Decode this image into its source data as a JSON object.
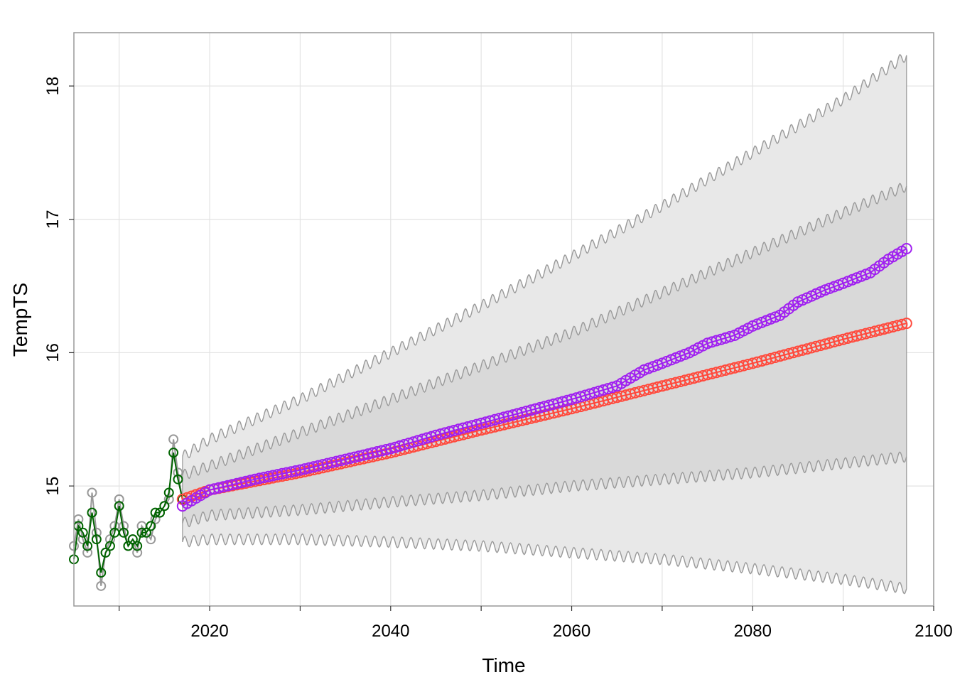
{
  "chart_data": {
    "type": "line",
    "title": "",
    "xlabel": "Time",
    "ylabel": "TempTS",
    "xlim": [
      2005,
      2100
    ],
    "ylim": [
      14.1,
      18.4
    ],
    "x_ticks": [
      2020,
      2040,
      2060,
      2080,
      2100
    ],
    "x_minor_ticks": [
      2010,
      2030,
      2050,
      2070,
      2090
    ],
    "y_ticks": [
      15,
      16,
      17,
      18
    ],
    "grid": true,
    "legend": "none",
    "colors": {
      "observed_line": "#999999",
      "fitted": "#006400",
      "forecast_a": "#FF4A3D",
      "forecast_b": "#A020F0",
      "interval_outer": "#E8E8E8",
      "interval_inner": "#D9D9D9",
      "interval_edge": "#999999"
    },
    "observed": {
      "x": [
        2005.0,
        2005.5,
        2006.0,
        2006.5,
        2007.0,
        2007.5,
        2008.0,
        2008.5,
        2009.0,
        2009.5,
        2010.0,
        2010.5,
        2011.0,
        2011.5,
        2012.0,
        2012.5,
        2013.0,
        2013.5,
        2014.0,
        2014.5,
        2015.0,
        2015.5,
        2016.0,
        2016.5,
        2017.0
      ],
      "y": [
        14.55,
        14.75,
        14.6,
        14.5,
        14.95,
        14.65,
        14.25,
        14.5,
        14.6,
        14.7,
        14.9,
        14.7,
        14.55,
        14.6,
        14.5,
        14.7,
        14.65,
        14.6,
        14.75,
        14.8,
        14.85,
        14.9,
        15.35,
        15.1,
        14.9
      ]
    },
    "fitted": {
      "x": [
        2005.0,
        2005.5,
        2006.0,
        2006.5,
        2007.0,
        2007.5,
        2008.0,
        2008.5,
        2009.0,
        2009.5,
        2010.0,
        2010.5,
        2011.0,
        2011.5,
        2012.0,
        2012.5,
        2013.0,
        2013.5,
        2014.0,
        2014.5,
        2015.0,
        2015.5,
        2016.0,
        2016.5,
        2017.0
      ],
      "y": [
        14.45,
        14.7,
        14.65,
        14.55,
        14.8,
        14.6,
        14.35,
        14.5,
        14.55,
        14.65,
        14.85,
        14.65,
        14.55,
        14.6,
        14.55,
        14.65,
        14.65,
        14.7,
        14.8,
        14.8,
        14.85,
        14.95,
        15.25,
        15.05,
        14.9
      ]
    },
    "series": [
      {
        "x": [
          2017,
          2020,
          2030,
          2040,
          2050,
          2060,
          2070,
          2080,
          2090,
          2097
        ],
        "values": [
          14.9,
          14.97,
          15.1,
          15.25,
          15.42,
          15.58,
          15.75,
          15.92,
          16.1,
          16.22
        ]
      },
      {
        "x": [
          2017,
          2020,
          2025,
          2030,
          2035,
          2040,
          2045,
          2050,
          2055,
          2060,
          2065,
          2068,
          2070,
          2073,
          2075,
          2078,
          2080,
          2083,
          2085,
          2088,
          2090,
          2093,
          2095,
          2097
        ],
        "values": [
          14.85,
          14.97,
          15.05,
          15.12,
          15.2,
          15.28,
          15.38,
          15.47,
          15.56,
          15.65,
          15.75,
          15.87,
          15.92,
          16.0,
          16.07,
          16.13,
          16.2,
          16.28,
          16.38,
          16.47,
          16.52,
          16.6,
          16.7,
          16.78
        ]
      }
    ],
    "interval_95": {
      "x": [
        2017,
        2020,
        2030,
        2040,
        2050,
        2060,
        2070,
        2080,
        2090,
        2097
      ],
      "lower": [
        14.58,
        14.6,
        14.6,
        14.58,
        14.55,
        14.5,
        14.45,
        14.38,
        14.3,
        14.23
      ],
      "upper": [
        15.22,
        15.35,
        15.65,
        16.0,
        16.35,
        16.72,
        17.1,
        17.5,
        17.9,
        18.23
      ]
    },
    "interval_80": {
      "x": [
        2017,
        2020,
        2030,
        2040,
        2050,
        2060,
        2070,
        2080,
        2090,
        2097
      ],
      "lower": [
        14.72,
        14.78,
        14.82,
        14.88,
        14.93,
        15.0,
        15.05,
        15.1,
        15.17,
        15.22
      ],
      "upper": [
        15.08,
        15.15,
        15.4,
        15.65,
        15.9,
        16.15,
        16.45,
        16.75,
        17.05,
        17.25
      ]
    }
  }
}
